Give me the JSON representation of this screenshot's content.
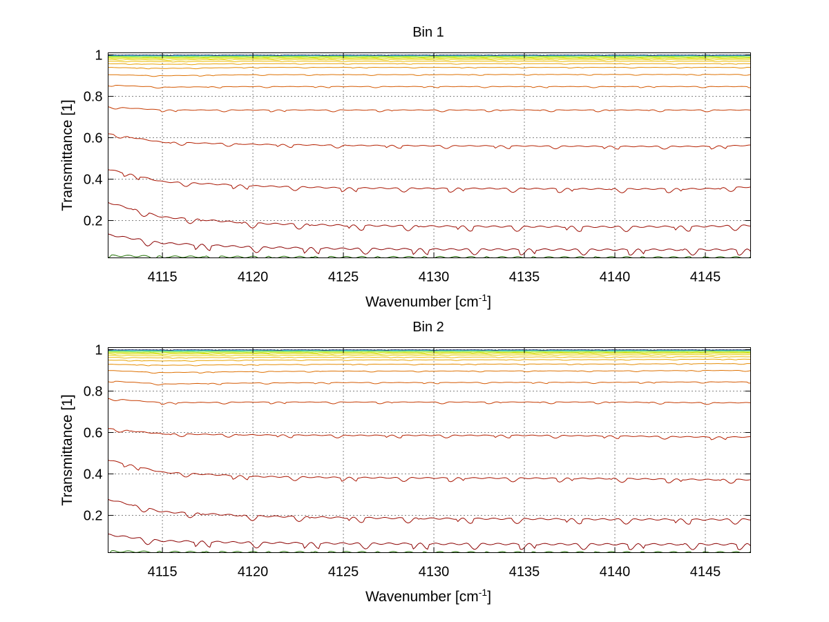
{
  "chart_data": [
    {
      "type": "line",
      "title": "Bin 1",
      "xlabel": "Wavenumber [cm",
      "xlabel_sup": "-1",
      "xlabel_suffix": "]",
      "ylabel": "Transmittance [1]",
      "xlim": [
        4112,
        4147.5
      ],
      "ylim": [
        0.02,
        1.01
      ],
      "grid": true,
      "xticks": [
        4115,
        4120,
        4125,
        4130,
        4135,
        4140,
        4145
      ],
      "yticks": [
        0.2,
        0.4,
        0.6,
        0.8,
        1
      ],
      "xtick_labels": [
        "4115",
        "4120",
        "4125",
        "4130",
        "4135",
        "4140",
        "4145"
      ],
      "ytick_labels": [
        "0.2",
        "0.4",
        "0.6",
        "0.8",
        "1"
      ],
      "series": [
        {
          "color": "#1e6f00",
          "x": [
            4112,
            4115,
            4120,
            4125,
            4130,
            4135,
            4140,
            4145,
            4147.5
          ],
          "values": [
            0.035,
            0.03,
            0.028,
            0.027,
            0.027,
            0.026,
            0.026,
            0.026,
            0.026
          ]
        },
        {
          "color": "#8b0000",
          "x": [
            4112,
            4115,
            4120,
            4125,
            4130,
            4135,
            4140,
            4145,
            4147.5
          ],
          "values": [
            0.135,
            0.095,
            0.075,
            0.068,
            0.065,
            0.064,
            0.063,
            0.063,
            0.063
          ]
        },
        {
          "color": "#9b0a00",
          "x": [
            4112,
            4115,
            4120,
            4125,
            4130,
            4135,
            4140,
            4145,
            4147.5
          ],
          "values": [
            0.29,
            0.22,
            0.19,
            0.18,
            0.176,
            0.174,
            0.173,
            0.175,
            0.18
          ]
        },
        {
          "color": "#a81400",
          "x": [
            4112,
            4115,
            4120,
            4125,
            4130,
            4135,
            4140,
            4145,
            4147.5
          ],
          "values": [
            0.45,
            0.39,
            0.37,
            0.36,
            0.358,
            0.357,
            0.355,
            0.356,
            0.365
          ]
        },
        {
          "color": "#b52000",
          "x": [
            4112,
            4115,
            4120,
            4125,
            4130,
            4135,
            4140,
            4145,
            4147.5
          ],
          "values": [
            0.62,
            0.58,
            0.57,
            0.565,
            0.563,
            0.562,
            0.56,
            0.56,
            0.565
          ]
        },
        {
          "color": "#c53a00",
          "x": [
            4112,
            4115,
            4120,
            4125,
            4130,
            4135,
            4140,
            4145,
            4147.5
          ],
          "values": [
            0.75,
            0.735,
            0.735,
            0.735,
            0.735,
            0.735,
            0.735,
            0.735,
            0.735
          ]
        },
        {
          "color": "#d45800",
          "x": [
            4112,
            4115,
            4120,
            4125,
            4130,
            4135,
            4140,
            4145,
            4147.5
          ],
          "values": [
            0.855,
            0.845,
            0.848,
            0.848,
            0.848,
            0.848,
            0.848,
            0.848,
            0.848
          ]
        },
        {
          "color": "#de7000",
          "x": [
            4112,
            4115,
            4120,
            4125,
            4130,
            4135,
            4140,
            4145,
            4147.5
          ],
          "values": [
            0.905,
            0.9,
            0.905,
            0.905,
            0.905,
            0.906,
            0.906,
            0.906,
            0.906
          ]
        },
        {
          "color": "#e48a00",
          "x": [
            4112,
            4115,
            4120,
            4125,
            4130,
            4135,
            4140,
            4145,
            4147.5
          ],
          "values": [
            0.94,
            0.935,
            0.94,
            0.94,
            0.94,
            0.94,
            0.94,
            0.94,
            0.94
          ]
        },
        {
          "color": "#e8a200",
          "x": [
            4112,
            4115,
            4120,
            4125,
            4130,
            4135,
            4140,
            4145,
            4147.5
          ],
          "values": [
            0.958,
            0.955,
            0.958,
            0.958,
            0.958,
            0.958,
            0.958,
            0.958,
            0.958
          ]
        },
        {
          "color": "#eab800",
          "x": [
            4112,
            4115,
            4120,
            4125,
            4130,
            4135,
            4140,
            4145,
            4147.5
          ],
          "values": [
            0.97,
            0.968,
            0.97,
            0.97,
            0.97,
            0.97,
            0.97,
            0.97,
            0.97
          ]
        },
        {
          "color": "#e6cc00",
          "x": [
            4112,
            4115,
            4120,
            4125,
            4130,
            4135,
            4140,
            4145,
            4147.5
          ],
          "values": [
            0.978,
            0.976,
            0.978,
            0.978,
            0.978,
            0.978,
            0.978,
            0.978,
            0.978
          ]
        },
        {
          "color": "#dada00",
          "x": [
            4112,
            4115,
            4120,
            4125,
            4130,
            4135,
            4140,
            4145,
            4147.5
          ],
          "values": [
            0.984,
            0.983,
            0.984,
            0.984,
            0.984,
            0.984,
            0.984,
            0.984,
            0.984
          ]
        },
        {
          "color": "#c8e000",
          "x": [
            4112,
            4115,
            4120,
            4125,
            4130,
            4135,
            4140,
            4145,
            4147.5
          ],
          "values": [
            0.989,
            0.988,
            0.989,
            0.989,
            0.989,
            0.989,
            0.989,
            0.989,
            0.989
          ]
        },
        {
          "color": "#a8e63a",
          "x": [
            4112,
            4115,
            4120,
            4125,
            4130,
            4135,
            4140,
            4145,
            4147.5
          ],
          "values": [
            0.992,
            0.991,
            0.992,
            0.992,
            0.992,
            0.992,
            0.992,
            0.992,
            0.992
          ]
        },
        {
          "color": "#7fe67f",
          "x": [
            4112,
            4115,
            4120,
            4125,
            4130,
            4135,
            4140,
            4145,
            4147.5
          ],
          "values": [
            0.995,
            0.994,
            0.995,
            0.995,
            0.995,
            0.995,
            0.995,
            0.995,
            0.995
          ]
        },
        {
          "color": "#55e0c0",
          "x": [
            4112,
            4115,
            4120,
            4125,
            4130,
            4135,
            4140,
            4145,
            4147.5
          ],
          "values": [
            0.997,
            0.996,
            0.997,
            0.997,
            0.997,
            0.997,
            0.997,
            0.997,
            0.997
          ]
        },
        {
          "color": "#30d0e8",
          "x": [
            4112,
            4115,
            4120,
            4125,
            4130,
            4135,
            4140,
            4145,
            4147.5
          ],
          "values": [
            0.998,
            0.998,
            0.998,
            0.998,
            0.998,
            0.998,
            0.998,
            0.998,
            0.998
          ]
        },
        {
          "color": "#1a2a6a",
          "x": [
            4112,
            4115,
            4120,
            4125,
            4130,
            4135,
            4140,
            4145,
            4147.5
          ],
          "values": [
            0.999,
            0.999,
            0.999,
            0.999,
            0.999,
            0.999,
            0.999,
            0.999,
            0.999
          ]
        }
      ]
    },
    {
      "type": "line",
      "title": "Bin 2",
      "xlabel": "Wavenumber [cm",
      "xlabel_sup": "-1",
      "xlabel_suffix": "]",
      "ylabel": "Transmittance [1]",
      "xlim": [
        4112,
        4147.5
      ],
      "ylim": [
        0.02,
        1.01
      ],
      "grid": true,
      "xticks": [
        4115,
        4120,
        4125,
        4130,
        4135,
        4140,
        4145
      ],
      "yticks": [
        0.2,
        0.4,
        0.6,
        0.8,
        1
      ],
      "xtick_labels": [
        "4115",
        "4120",
        "4125",
        "4130",
        "4135",
        "4140",
        "4145"
      ],
      "ytick_labels": [
        "0.2",
        "0.4",
        "0.6",
        "0.8",
        "1"
      ],
      "series": [
        {
          "color": "#1e6f00",
          "x": [
            4112,
            4115,
            4120,
            4125,
            4130,
            4135,
            4140,
            4145,
            4147.5
          ],
          "values": [
            0.03,
            0.027,
            0.026,
            0.026,
            0.025,
            0.025,
            0.025,
            0.025,
            0.025
          ]
        },
        {
          "color": "#8b0000",
          "x": [
            4112,
            4115,
            4120,
            4125,
            4130,
            4135,
            4140,
            4145,
            4147.5
          ],
          "values": [
            0.11,
            0.08,
            0.072,
            0.068,
            0.066,
            0.065,
            0.064,
            0.064,
            0.064
          ]
        },
        {
          "color": "#9b0a00",
          "x": [
            4112,
            4115,
            4120,
            4125,
            4130,
            4135,
            4140,
            4145,
            4147.5
          ],
          "values": [
            0.28,
            0.22,
            0.2,
            0.192,
            0.188,
            0.186,
            0.184,
            0.183,
            0.184
          ]
        },
        {
          "color": "#a81400",
          "x": [
            4112,
            4115,
            4120,
            4125,
            4130,
            4135,
            4140,
            4145,
            4147.5
          ],
          "values": [
            0.47,
            0.41,
            0.39,
            0.385,
            0.383,
            0.382,
            0.38,
            0.375,
            0.375
          ]
        },
        {
          "color": "#b52000",
          "x": [
            4112,
            4115,
            4120,
            4125,
            4130,
            4135,
            4140,
            4145,
            4147.5
          ],
          "values": [
            0.62,
            0.595,
            0.59,
            0.588,
            0.588,
            0.588,
            0.585,
            0.58,
            0.58
          ]
        },
        {
          "color": "#c53a00",
          "x": [
            4112,
            4115,
            4120,
            4125,
            4130,
            4135,
            4140,
            4145,
            4147.5
          ],
          "values": [
            0.765,
            0.745,
            0.748,
            0.748,
            0.748,
            0.748,
            0.748,
            0.745,
            0.745
          ]
        },
        {
          "color": "#d45800",
          "x": [
            4112,
            4115,
            4120,
            4125,
            4130,
            4135,
            4140,
            4145,
            4147.5
          ],
          "values": [
            0.85,
            0.835,
            0.84,
            0.842,
            0.842,
            0.843,
            0.843,
            0.845,
            0.845
          ]
        },
        {
          "color": "#de7000",
          "x": [
            4112,
            4115,
            4120,
            4125,
            4130,
            4135,
            4140,
            4145,
            4147.5
          ],
          "values": [
            0.9,
            0.89,
            0.895,
            0.897,
            0.897,
            0.898,
            0.898,
            0.9,
            0.9
          ]
        },
        {
          "color": "#e48a00",
          "x": [
            4112,
            4115,
            4120,
            4125,
            4130,
            4135,
            4140,
            4145,
            4147.5
          ],
          "values": [
            0.93,
            0.925,
            0.928,
            0.93,
            0.93,
            0.931,
            0.931,
            0.933,
            0.933
          ]
        },
        {
          "color": "#e8a200",
          "x": [
            4112,
            4115,
            4120,
            4125,
            4130,
            4135,
            4140,
            4145,
            4147.5
          ],
          "values": [
            0.95,
            0.946,
            0.95,
            0.951,
            0.951,
            0.952,
            0.952,
            0.954,
            0.954
          ]
        },
        {
          "color": "#eab800",
          "x": [
            4112,
            4115,
            4120,
            4125,
            4130,
            4135,
            4140,
            4145,
            4147.5
          ],
          "values": [
            0.963,
            0.961,
            0.963,
            0.964,
            0.964,
            0.965,
            0.965,
            0.966,
            0.966
          ]
        },
        {
          "color": "#e6cc00",
          "x": [
            4112,
            4115,
            4120,
            4125,
            4130,
            4135,
            4140,
            4145,
            4147.5
          ],
          "values": [
            0.973,
            0.971,
            0.973,
            0.974,
            0.974,
            0.975,
            0.975,
            0.976,
            0.976
          ]
        },
        {
          "color": "#dada00",
          "x": [
            4112,
            4115,
            4120,
            4125,
            4130,
            4135,
            4140,
            4145,
            4147.5
          ],
          "values": [
            0.98,
            0.979,
            0.981,
            0.981,
            0.981,
            0.982,
            0.982,
            0.983,
            0.983
          ]
        },
        {
          "color": "#c8e000",
          "x": [
            4112,
            4115,
            4120,
            4125,
            4130,
            4135,
            4140,
            4145,
            4147.5
          ],
          "values": [
            0.986,
            0.985,
            0.986,
            0.987,
            0.987,
            0.987,
            0.987,
            0.988,
            0.988
          ]
        },
        {
          "color": "#a8e63a",
          "x": [
            4112,
            4115,
            4120,
            4125,
            4130,
            4135,
            4140,
            4145,
            4147.5
          ],
          "values": [
            0.99,
            0.989,
            0.99,
            0.991,
            0.991,
            0.991,
            0.991,
            0.992,
            0.992
          ]
        },
        {
          "color": "#7fe67f",
          "x": [
            4112,
            4115,
            4120,
            4125,
            4130,
            4135,
            4140,
            4145,
            4147.5
          ],
          "values": [
            0.993,
            0.992,
            0.993,
            0.994,
            0.994,
            0.994,
            0.994,
            0.995,
            0.995
          ]
        },
        {
          "color": "#55e0c0",
          "x": [
            4112,
            4115,
            4120,
            4125,
            4130,
            4135,
            4140,
            4145,
            4147.5
          ],
          "values": [
            0.996,
            0.995,
            0.996,
            0.996,
            0.996,
            0.996,
            0.996,
            0.997,
            0.997
          ]
        },
        {
          "color": "#30d0e8",
          "x": [
            4112,
            4115,
            4120,
            4125,
            4130,
            4135,
            4140,
            4145,
            4147.5
          ],
          "values": [
            0.998,
            0.997,
            0.998,
            0.998,
            0.998,
            0.998,
            0.998,
            0.998,
            0.998
          ]
        },
        {
          "color": "#1a2a6a",
          "x": [
            4112,
            4115,
            4120,
            4125,
            4130,
            4135,
            4140,
            4145,
            4147.5
          ],
          "values": [
            0.999,
            0.999,
            0.999,
            0.999,
            0.999,
            0.999,
            0.999,
            0.999,
            0.999
          ]
        }
      ]
    }
  ]
}
